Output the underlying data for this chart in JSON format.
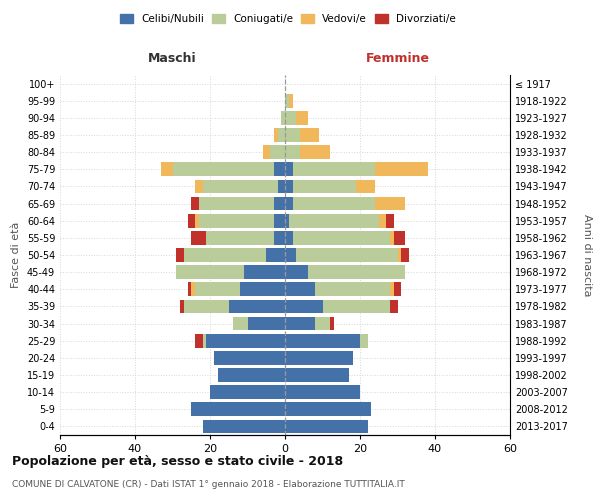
{
  "age_groups": [
    "0-4",
    "5-9",
    "10-14",
    "15-19",
    "20-24",
    "25-29",
    "30-34",
    "35-39",
    "40-44",
    "45-49",
    "50-54",
    "55-59",
    "60-64",
    "65-69",
    "70-74",
    "75-79",
    "80-84",
    "85-89",
    "90-94",
    "95-99",
    "100+"
  ],
  "birth_years": [
    "2013-2017",
    "2008-2012",
    "2003-2007",
    "1998-2002",
    "1993-1997",
    "1988-1992",
    "1983-1987",
    "1978-1982",
    "1973-1977",
    "1968-1972",
    "1963-1967",
    "1958-1962",
    "1953-1957",
    "1948-1952",
    "1943-1947",
    "1938-1942",
    "1933-1937",
    "1928-1932",
    "1923-1927",
    "1918-1922",
    "≤ 1917"
  ],
  "males": {
    "celibi": [
      22,
      25,
      20,
      18,
      19,
      21,
      10,
      15,
      12,
      11,
      5,
      3,
      3,
      3,
      2,
      3,
      0,
      0,
      0,
      0,
      0
    ],
    "coniugati": [
      0,
      0,
      0,
      0,
      0,
      1,
      4,
      12,
      12,
      18,
      22,
      18,
      20,
      20,
      20,
      27,
      4,
      2,
      1,
      0,
      0
    ],
    "vedovi": [
      0,
      0,
      0,
      0,
      0,
      0,
      0,
      0,
      1,
      0,
      0,
      0,
      1,
      0,
      2,
      3,
      2,
      1,
      0,
      0,
      0
    ],
    "divorziati": [
      0,
      0,
      0,
      0,
      0,
      2,
      0,
      1,
      1,
      0,
      2,
      4,
      2,
      2,
      0,
      0,
      0,
      0,
      0,
      0,
      0
    ]
  },
  "females": {
    "nubili": [
      22,
      23,
      20,
      17,
      18,
      20,
      8,
      10,
      8,
      6,
      3,
      2,
      1,
      2,
      2,
      2,
      0,
      0,
      0,
      0,
      0
    ],
    "coniugate": [
      0,
      0,
      0,
      0,
      0,
      2,
      4,
      18,
      20,
      26,
      27,
      26,
      24,
      22,
      17,
      22,
      4,
      4,
      3,
      1,
      0
    ],
    "vedove": [
      0,
      0,
      0,
      0,
      0,
      0,
      0,
      0,
      1,
      0,
      1,
      1,
      2,
      8,
      5,
      14,
      8,
      5,
      3,
      1,
      0
    ],
    "divorziate": [
      0,
      0,
      0,
      0,
      0,
      0,
      1,
      2,
      2,
      0,
      2,
      3,
      2,
      0,
      0,
      0,
      0,
      0,
      0,
      0,
      0
    ]
  },
  "colors": {
    "celibi_nubili": "#4472a8",
    "coniugati": "#b9cc99",
    "vedovi": "#f0b85a",
    "divorziati": "#c0312b"
  },
  "xlim": 60,
  "title": "Popolazione per età, sesso e stato civile - 2018",
  "subtitle": "COMUNE DI CALVATONE (CR) - Dati ISTAT 1° gennaio 2018 - Elaborazione TUTTITALIA.IT",
  "xlabel_left": "Maschi",
  "xlabel_right": "Femmine",
  "ylabel": "Fasce di età",
  "ylabel_right": "Anni di nascita",
  "legend_labels": [
    "Celibi/Nubili",
    "Coniugati/e",
    "Vedovi/e",
    "Divorziati/e"
  ],
  "bg_color": "#ffffff",
  "grid_color": "#cccccc"
}
